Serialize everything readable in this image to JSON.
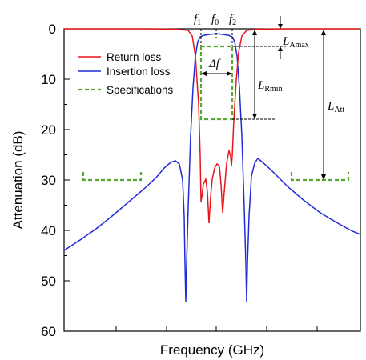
{
  "chart_data": {
    "type": "line",
    "xlabel": "Frequency (GHz)",
    "ylabel": "Attenuation (dB)",
    "x_tick_labels": [],
    "y_ticks": [
      0,
      10,
      20,
      30,
      40,
      50,
      60
    ],
    "ylim": [
      0,
      60
    ],
    "y_inverted": true,
    "grid": false,
    "legend_position": "upper-left",
    "legend": [
      {
        "label": "Return loss",
        "color": "#e8161b",
        "style": "solid"
      },
      {
        "label": "Insertion loss",
        "color": "#1f2bd9",
        "style": "solid"
      },
      {
        "label": "Specifications",
        "color": "#5aa832",
        "style": "dashed"
      }
    ],
    "annotations": {
      "f1": "f",
      "f1_sub": "1",
      "f0": "f",
      "f0_sub": "0",
      "f2": "f",
      "f2_sub": "2",
      "bandwidth": "Δf",
      "l_amax": "L",
      "l_amax_sub": "Amax",
      "l_rmin": "L",
      "l_rmin_sub": "Rmin",
      "l_att": "L",
      "l_att_sub": "Att"
    }
  }
}
